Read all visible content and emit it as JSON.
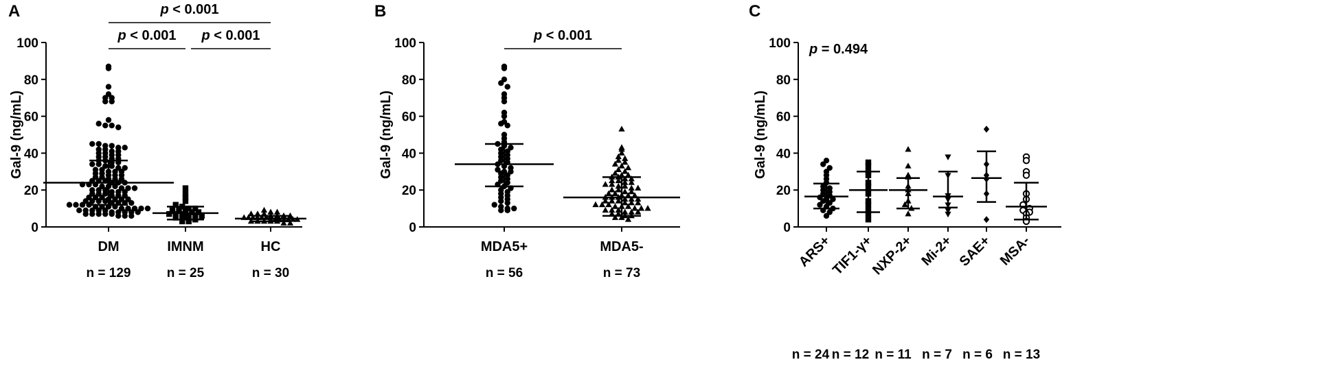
{
  "chart_data": [
    {
      "panel": "A",
      "type": "scatter",
      "ylabel": "Gal-9 (ng/mL)",
      "ylim": [
        0,
        100
      ],
      "yticks": [
        0,
        20,
        40,
        60,
        80,
        100
      ],
      "groups": [
        {
          "name": "DM",
          "n_label": "n = 129",
          "marker": "circle",
          "mean": 24,
          "sd_low": 12,
          "sd_high": 36,
          "values": [
            87,
            86,
            76,
            72,
            70,
            70,
            68,
            68,
            58,
            56,
            55,
            55,
            54,
            45,
            45,
            44,
            44,
            43,
            43,
            42,
            42,
            41,
            41,
            40,
            40,
            39,
            39,
            38,
            38,
            37,
            37,
            36,
            36,
            35,
            35,
            34,
            34,
            33,
            33,
            32,
            32,
            31,
            31,
            30,
            30,
            30,
            29,
            29,
            28,
            28,
            28,
            27,
            27,
            26,
            26,
            26,
            25,
            25,
            25,
            24,
            24,
            24,
            23,
            23,
            23,
            22,
            22,
            22,
            21,
            21,
            21,
            20,
            20,
            20,
            19,
            19,
            19,
            18,
            18,
            18,
            17,
            17,
            17,
            16,
            16,
            16,
            15,
            15,
            15,
            15,
            14,
            14,
            14,
            14,
            13,
            13,
            13,
            13,
            12,
            12,
            12,
            12,
            11,
            11,
            11,
            11,
            10,
            10,
            10,
            10,
            10,
            9,
            9,
            9,
            9,
            9,
            8,
            8,
            8,
            8,
            8,
            7,
            7,
            7,
            7,
            7,
            6,
            6,
            6
          ]
        },
        {
          "name": "IMNM",
          "n_label": "n = 25",
          "marker": "square",
          "mean": 7.5,
          "sd_low": 4,
          "sd_high": 11,
          "values": [
            21,
            18,
            16,
            14,
            12,
            11,
            10,
            10,
            9,
            9,
            8,
            8,
            8,
            7,
            7,
            7,
            6,
            6,
            6,
            5,
            5,
            4,
            4,
            3,
            3
          ]
        },
        {
          "name": "HC",
          "n_label": "n = 30",
          "marker": "triangle",
          "mean": 4.5,
          "sd_low": 3,
          "sd_high": 6,
          "values": [
            9,
            8,
            8,
            7,
            7,
            7,
            6,
            6,
            6,
            6,
            5,
            5,
            5,
            5,
            5,
            5,
            4,
            4,
            4,
            4,
            4,
            4,
            4,
            3,
            3,
            3,
            3,
            3,
            2,
            2
          ]
        }
      ],
      "comparisons": [
        {
          "from": 0,
          "to": 2,
          "label": "p < 0.001",
          "y": 110
        },
        {
          "from": 0,
          "to": 1,
          "label": "p < 0.001",
          "y": 97
        },
        {
          "from": 1,
          "to": 2,
          "label": "p < 0.001",
          "y": 97
        }
      ]
    },
    {
      "panel": "B",
      "type": "scatter",
      "ylabel": "Gal-9 (ng/mL)",
      "ylim": [
        0,
        100
      ],
      "yticks": [
        0,
        20,
        40,
        60,
        80,
        100
      ],
      "groups": [
        {
          "name": "MDA5+",
          "n_label": "n = 56",
          "marker": "circle",
          "mean": 34,
          "sd_low": 22,
          "sd_high": 45,
          "values": [
            87,
            86,
            80,
            78,
            76,
            72,
            70,
            68,
            62,
            60,
            57,
            56,
            55,
            50,
            48,
            46,
            45,
            44,
            43,
            42,
            41,
            40,
            39,
            38,
            37,
            36,
            35,
            34,
            33,
            32,
            31,
            30,
            30,
            29,
            28,
            27,
            26,
            25,
            24,
            23,
            22,
            21,
            20,
            19,
            18,
            17,
            16,
            15,
            14,
            13,
            12,
            11,
            10,
            10,
            9,
            9
          ]
        },
        {
          "name": "MDA5-",
          "n_label": "n = 73",
          "marker": "triangle",
          "mean": 16,
          "sd_low": 6,
          "sd_high": 27,
          "values": [
            53,
            43,
            42,
            40,
            38,
            37,
            36,
            35,
            34,
            33,
            32,
            31,
            30,
            29,
            28,
            28,
            27,
            27,
            26,
            26,
            25,
            25,
            24,
            24,
            23,
            23,
            22,
            22,
            21,
            21,
            20,
            20,
            19,
            19,
            18,
            18,
            17,
            17,
            17,
            16,
            16,
            16,
            15,
            15,
            15,
            14,
            14,
            14,
            13,
            13,
            13,
            12,
            12,
            12,
            11,
            11,
            11,
            10,
            10,
            10,
            9,
            9,
            9,
            8,
            8,
            8,
            7,
            7,
            6,
            6,
            5,
            5,
            4
          ]
        }
      ],
      "comparisons": [
        {
          "from": 0,
          "to": 1,
          "label": "p < 0.001",
          "y": 97
        }
      ]
    },
    {
      "panel": "C",
      "type": "scatter",
      "ylabel": "Gal-9 (ng/mL)",
      "ylim": [
        0,
        100
      ],
      "yticks": [
        0,
        20,
        40,
        60,
        80,
        100
      ],
      "pvalue_text": "p = 0.494",
      "groups": [
        {
          "name": "ARS+",
          "n_label": "n = 24",
          "marker": "circle",
          "mean": 16.5,
          "sd_low": 10,
          "sd_high": 23.5,
          "values": [
            36,
            34,
            32,
            30,
            28,
            26,
            24,
            22,
            21,
            20,
            19,
            18,
            17,
            16,
            15,
            15,
            14,
            13,
            12,
            11,
            10,
            9,
            8,
            6
          ]
        },
        {
          "name": "TIF1-γ+",
          "n_label": "n = 12",
          "marker": "square",
          "mean": 20,
          "sd_low": 8,
          "sd_high": 30,
          "values": [
            35,
            33,
            30,
            28,
            24,
            22,
            18,
            14,
            12,
            9,
            7,
            4
          ]
        },
        {
          "name": "NXP-2+",
          "n_label": "n = 11",
          "marker": "triangle",
          "mean": 20,
          "sd_low": 10,
          "sd_high": 26.5,
          "values": [
            42,
            33,
            28,
            27,
            22,
            20,
            18,
            14,
            12,
            10,
            7
          ]
        },
        {
          "name": "Mi-2+",
          "n_label": "n = 7",
          "marker": "triangle-down",
          "mean": 16.5,
          "sd_low": 10.5,
          "sd_high": 30,
          "values": [
            38,
            28,
            17,
            15,
            12,
            9,
            7
          ]
        },
        {
          "name": "SAE+",
          "n_label": "n = 6",
          "marker": "diamond",
          "mean": 26.5,
          "sd_low": 13.5,
          "sd_high": 41,
          "values": [
            53,
            34,
            28,
            26,
            18,
            4
          ]
        },
        {
          "name": "MSA-",
          "n_label": "n = 13",
          "marker": "open-circle",
          "mean": 11,
          "sd_low": 4,
          "sd_high": 24,
          "values": [
            38,
            36,
            30,
            28,
            18,
            15,
            12,
            10,
            9,
            8,
            7,
            5,
            3
          ]
        }
      ],
      "comparisons": []
    }
  ]
}
